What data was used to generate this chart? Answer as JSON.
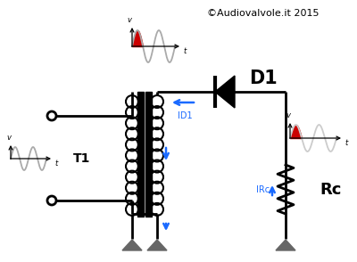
{
  "bg_color": "#ffffff",
  "copyright_text": "©Audiovalvole.it 2015",
  "copyright_fontsize": 8,
  "d1_label": "D1",
  "t1_label": "T1",
  "rc_label": "Rc",
  "id1_label": "ID1",
  "irc_label": "IRc",
  "wire_color": "#000000",
  "blue_color": "#1a6aff",
  "red_color": "#cc0000",
  "ground_color": "#555555"
}
